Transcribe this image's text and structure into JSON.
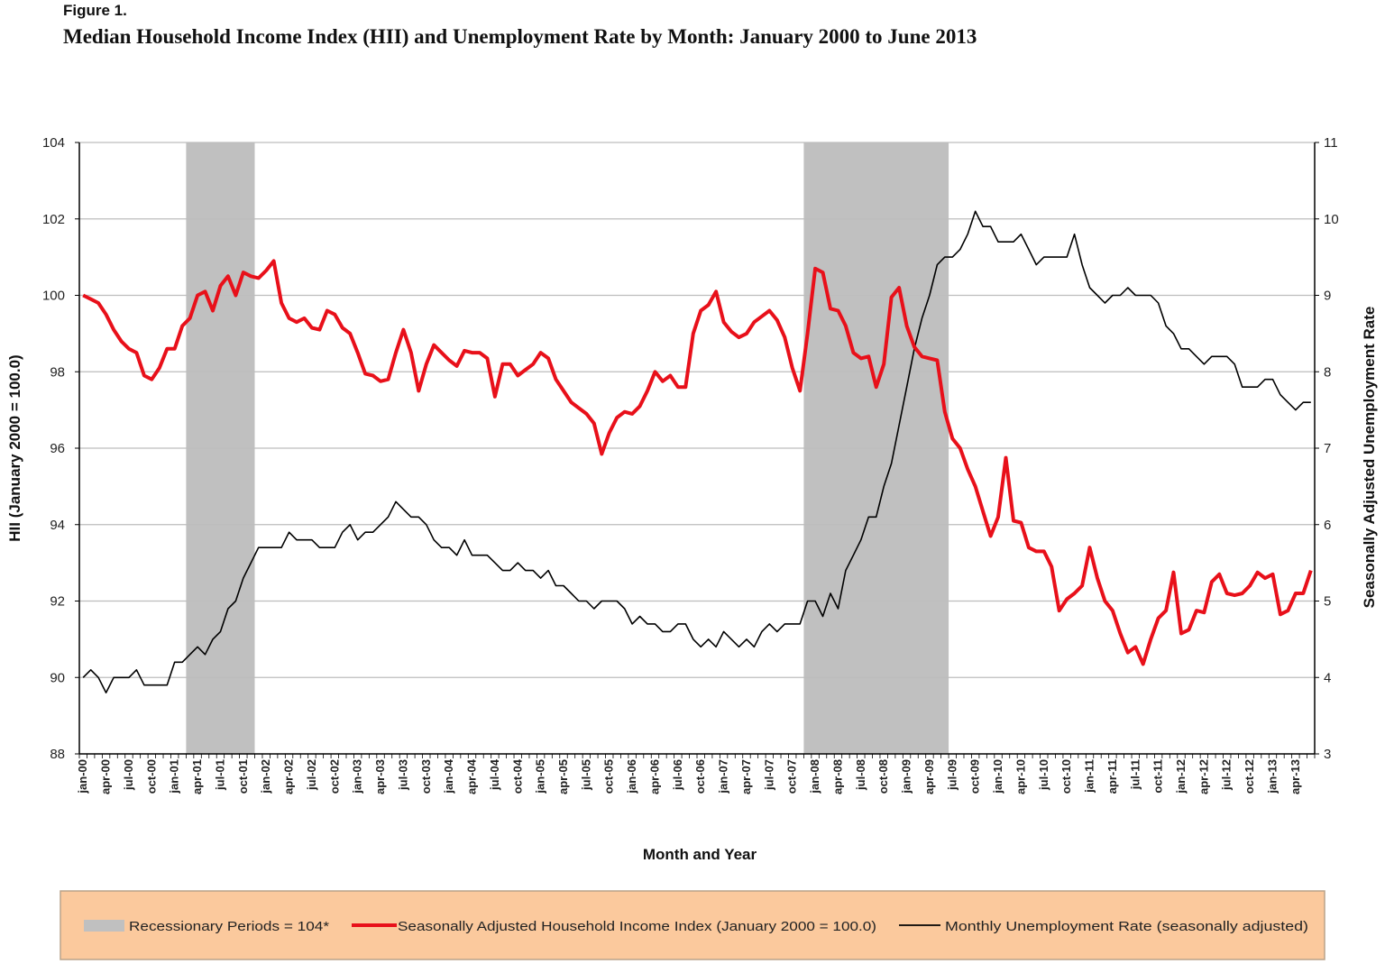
{
  "figure_label": "Figure 1.",
  "title": "Median Household Income Index (HII) and Unemployment Rate by Month: January 2000 to June 2013",
  "chart_data": {
    "type": "line",
    "title": "Median Household Income Index (HII) and Unemployment Rate by Month: January 2000 to June 2013",
    "xlabel": "Month and Year",
    "ylabel_left": "HII (January 2000 = 100.0)",
    "ylabel_right": "Seasonally Adjusted Unemployment Rate",
    "ylim_left": [
      88,
      104
    ],
    "yticks_left": [
      88,
      90,
      92,
      94,
      96,
      98,
      100,
      102,
      104
    ],
    "ylim_right": [
      3,
      11
    ],
    "yticks_right": [
      3,
      4,
      5,
      6,
      7,
      8,
      9,
      10,
      11
    ],
    "grid": true,
    "x_tick_every": 3,
    "categories": [
      "jan-00",
      "feb-00",
      "mar-00",
      "apr-00",
      "may-00",
      "jun-00",
      "jul-00",
      "aug-00",
      "sep-00",
      "oct-00",
      "nov-00",
      "dec-00",
      "jan-01",
      "feb-01",
      "mar-01",
      "apr-01",
      "may-01",
      "jun-01",
      "jul-01",
      "aug-01",
      "sep-01",
      "oct-01",
      "nov-01",
      "dec-01",
      "jan-02",
      "feb-02",
      "mar-02",
      "apr-02",
      "may-02",
      "jun-02",
      "jul-02",
      "aug-02",
      "sep-02",
      "oct-02",
      "nov-02",
      "dec-02",
      "jan-03",
      "feb-03",
      "mar-03",
      "apr-03",
      "may-03",
      "jun-03",
      "jul-03",
      "aug-03",
      "sep-03",
      "oct-03",
      "nov-03",
      "dec-03",
      "jan-04",
      "feb-04",
      "mar-04",
      "apr-04",
      "may-04",
      "jun-04",
      "jul-04",
      "aug-04",
      "sep-04",
      "oct-04",
      "nov-04",
      "dec-04",
      "jan-05",
      "feb-05",
      "mar-05",
      "apr-05",
      "may-05",
      "jun-05",
      "jul-05",
      "aug-05",
      "sep-05",
      "oct-05",
      "nov-05",
      "dec-05",
      "jan-06",
      "feb-06",
      "mar-06",
      "apr-06",
      "may-06",
      "jun-06",
      "jul-06",
      "aug-06",
      "sep-06",
      "oct-06",
      "nov-06",
      "dec-06",
      "jan-07",
      "feb-07",
      "mar-07",
      "apr-07",
      "may-07",
      "jun-07",
      "jul-07",
      "aug-07",
      "sep-07",
      "oct-07",
      "nov-07",
      "dec-07",
      "jan-08",
      "feb-08",
      "mar-08",
      "apr-08",
      "may-08",
      "jun-08",
      "jul-08",
      "aug-08",
      "sep-08",
      "oct-08",
      "nov-08",
      "dec-08",
      "jan-09",
      "feb-09",
      "mar-09",
      "apr-09",
      "may-09",
      "jun-09",
      "jul-09",
      "aug-09",
      "sep-09",
      "oct-09",
      "nov-09",
      "dec-09",
      "jan-10",
      "feb-10",
      "mar-10",
      "apr-10",
      "may-10",
      "jun-10",
      "jul-10",
      "aug-10",
      "sep-10",
      "oct-10",
      "nov-10",
      "dec-10",
      "jan-11",
      "feb-11",
      "mar-11",
      "apr-11",
      "may-11",
      "jun-11",
      "jul-11",
      "aug-11",
      "sep-11",
      "oct-11",
      "nov-11",
      "dec-11",
      "jan-12",
      "feb-12",
      "mar-12",
      "apr-12",
      "may-12",
      "jun-12",
      "jul-12",
      "aug-12",
      "sep-12",
      "oct-12",
      "nov-12",
      "dec-12",
      "jan-13",
      "feb-13",
      "mar-13",
      "apr-13",
      "may-13",
      "jun-13"
    ],
    "series": [
      {
        "name": "Seasonally Adjusted Household Income Index (January 2000 = 100.0)",
        "axis": "left",
        "color": "#e8101a",
        "values": [
          100.0,
          99.9,
          99.8,
          99.5,
          99.1,
          98.8,
          98.6,
          98.5,
          97.9,
          97.8,
          98.1,
          98.6,
          98.6,
          99.2,
          99.4,
          100.0,
          100.1,
          99.6,
          100.25,
          100.5,
          100.0,
          100.6,
          100.5,
          100.45,
          100.65,
          100.9,
          99.8,
          99.4,
          99.3,
          99.4,
          99.15,
          99.1,
          99.6,
          99.5,
          99.15,
          99.0,
          98.5,
          97.95,
          97.9,
          97.75,
          97.8,
          98.5,
          99.1,
          98.5,
          97.5,
          98.2,
          98.7,
          98.5,
          98.3,
          98.15,
          98.55,
          98.5,
          98.5,
          98.35,
          97.35,
          98.2,
          98.2,
          97.9,
          98.05,
          98.2,
          98.5,
          98.35,
          97.8,
          97.5,
          97.2,
          97.05,
          96.9,
          96.65,
          95.85,
          96.4,
          96.8,
          96.95,
          96.9,
          97.1,
          97.5,
          98.0,
          97.75,
          97.9,
          97.6,
          97.6,
          99.0,
          99.6,
          99.75,
          100.1,
          99.3,
          99.05,
          98.9,
          99.0,
          99.3,
          99.45,
          99.6,
          99.35,
          98.9,
          98.1,
          97.5,
          99.0,
          100.7,
          100.6,
          99.65,
          99.6,
          99.2,
          98.5,
          98.35,
          98.4,
          97.6,
          98.2,
          99.95,
          100.2,
          99.2,
          98.65,
          98.4,
          98.35,
          98.3,
          96.95,
          96.25,
          96.0,
          95.45,
          95.0,
          94.35,
          93.7,
          94.2,
          95.75,
          94.1,
          94.05,
          93.4,
          93.3,
          93.3,
          92.9,
          91.75,
          92.05,
          92.2,
          92.4,
          93.4,
          92.6,
          92.0,
          91.75,
          91.15,
          90.65,
          90.8,
          90.35,
          91.0,
          91.55,
          91.75,
          92.75,
          91.15,
          91.25,
          91.75,
          91.7,
          92.5,
          92.7,
          92.2,
          92.15,
          92.2,
          92.4,
          92.75,
          92.6,
          92.7,
          91.65,
          91.75,
          92.2,
          92.2,
          92.8
        ]
      },
      {
        "name": "Monthly Unemployment Rate (seasonally adjusted)",
        "axis": "right",
        "color": "#000000",
        "values": [
          4.0,
          4.1,
          4.0,
          3.8,
          4.0,
          4.0,
          4.0,
          4.1,
          3.9,
          3.9,
          3.9,
          3.9,
          4.2,
          4.2,
          4.3,
          4.4,
          4.3,
          4.5,
          4.6,
          4.9,
          5.0,
          5.3,
          5.5,
          5.7,
          5.7,
          5.7,
          5.7,
          5.9,
          5.8,
          5.8,
          5.8,
          5.7,
          5.7,
          5.7,
          5.9,
          6.0,
          5.8,
          5.9,
          5.9,
          6.0,
          6.1,
          6.3,
          6.2,
          6.1,
          6.1,
          6.0,
          5.8,
          5.7,
          5.7,
          5.6,
          5.8,
          5.6,
          5.6,
          5.6,
          5.5,
          5.4,
          5.4,
          5.5,
          5.4,
          5.4,
          5.3,
          5.4,
          5.2,
          5.2,
          5.1,
          5.0,
          5.0,
          4.9,
          5.0,
          5.0,
          5.0,
          4.9,
          4.7,
          4.8,
          4.7,
          4.7,
          4.6,
          4.6,
          4.7,
          4.7,
          4.5,
          4.4,
          4.5,
          4.4,
          4.6,
          4.5,
          4.4,
          4.5,
          4.4,
          4.6,
          4.7,
          4.6,
          4.7,
          4.7,
          4.7,
          5.0,
          5.0,
          4.8,
          5.1,
          4.9,
          5.4,
          5.6,
          5.8,
          6.1,
          6.1,
          6.5,
          6.8,
          7.3,
          7.8,
          8.3,
          8.7,
          9.0,
          9.4,
          9.5,
          9.5,
          9.6,
          9.8,
          10.1,
          9.9,
          9.9,
          9.7,
          9.7,
          9.7,
          9.8,
          9.6,
          9.4,
          9.5,
          9.5,
          9.5,
          9.5,
          9.8,
          9.4,
          9.1,
          9.0,
          8.9,
          9.0,
          9.0,
          9.1,
          9.0,
          9.0,
          9.0,
          8.9,
          8.6,
          8.5,
          8.3,
          8.3,
          8.2,
          8.1,
          8.2,
          8.2,
          8.2,
          8.1,
          7.8,
          7.8,
          7.8,
          7.9,
          7.9,
          7.7,
          7.6,
          7.5,
          7.6,
          7.6
        ]
      }
    ],
    "recessions": [
      {
        "start": "mar-01",
        "end": "nov-01"
      },
      {
        "start": "dec-07",
        "end": "jun-09"
      }
    ],
    "recession_color": "#c0c0c0",
    "legend": {
      "placement": "bottom",
      "background": "#fbc99d",
      "items": [
        {
          "label": "Recessionary Periods = 104*",
          "kind": "box",
          "color": "#c0c0c0"
        },
        {
          "label": "Seasonally Adjusted Household Income Index (January 2000 = 100.0)",
          "kind": "line",
          "color": "#e8101a"
        },
        {
          "label": "Monthly Unemployment Rate (seasonally adjusted)",
          "kind": "line",
          "color": "#000000"
        }
      ]
    }
  }
}
